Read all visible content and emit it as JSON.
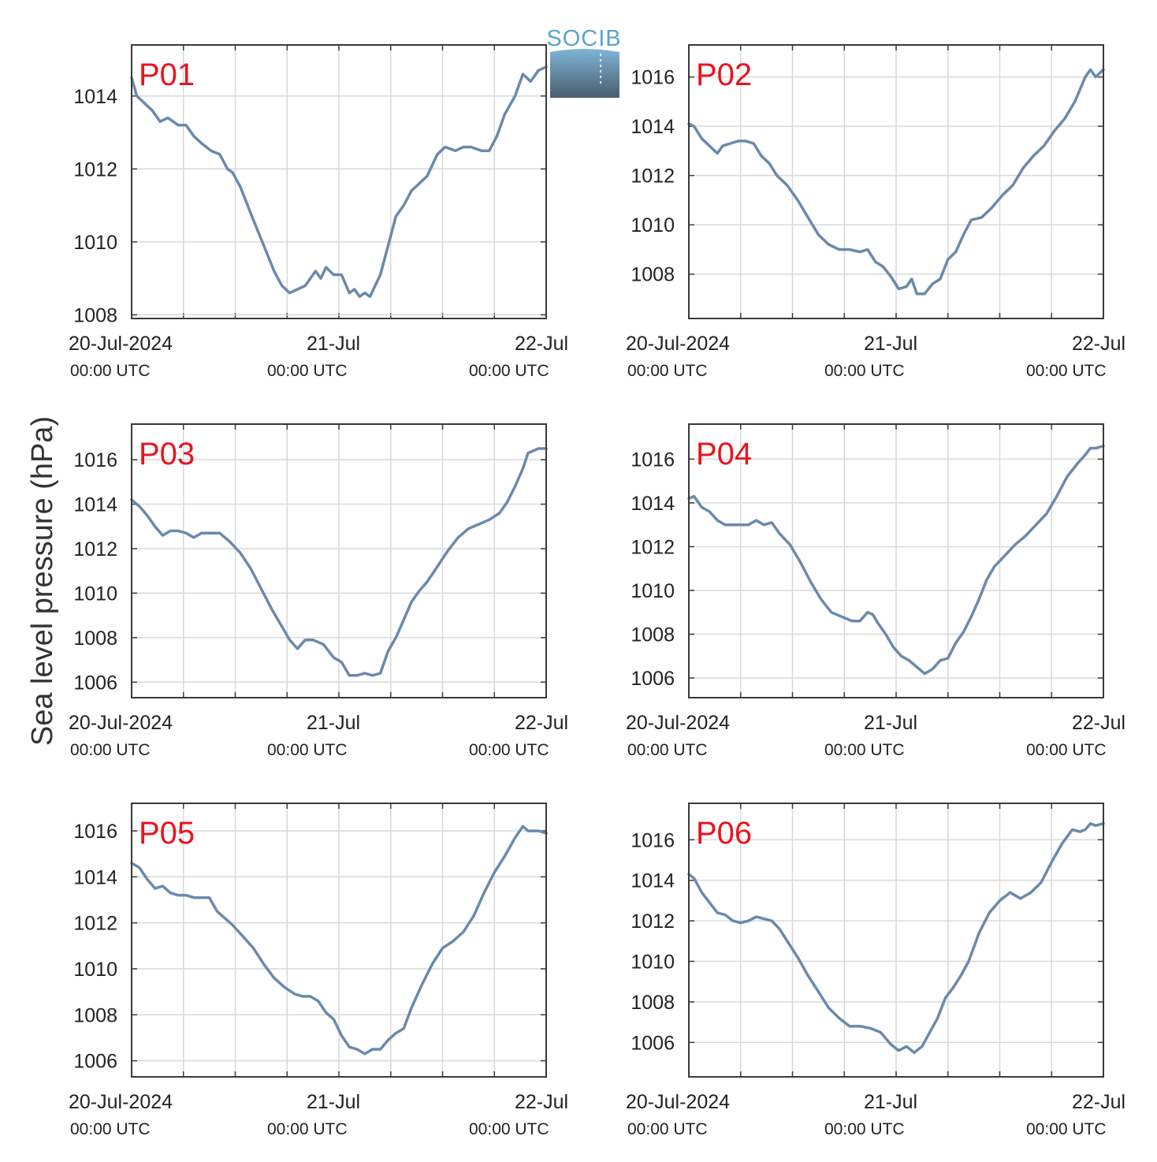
{
  "figure": {
    "ylabel": "Sea level pressure (hPa)",
    "logo_text": "SOCIB",
    "x_tick_labels": [
      "20-Jul-2024",
      "21-Jul",
      "22-Jul"
    ],
    "x_tick_sublabels": [
      "00:00 UTC",
      "00:00 UTC",
      "00:00 UTC"
    ]
  },
  "colors": {
    "line": "#6a8aac",
    "panel_label": "#e8141e",
    "grid": "#d9d9d9",
    "axis": "#3a3a3a",
    "logo_text": "#5ba3cd",
    "logo_top": "#7fb5d5",
    "logo_bottom": "#4a5c70"
  },
  "chart_data": [
    {
      "type": "line",
      "label": "P01",
      "x_unit": "hours since 20-Jul-2024 00:00 UTC",
      "xlim": [
        0,
        48
      ],
      "ylim": [
        1007.9,
        1015.4
      ],
      "yticks": [
        1008,
        1010,
        1012,
        1014
      ],
      "x": [
        0,
        0.6,
        1.5,
        2.4,
        3.3,
        4.2,
        5.4,
        6.3,
        7.2,
        8.1,
        9.2,
        10.2,
        11.1,
        11.7,
        12.6,
        14.1,
        15.3,
        16.5,
        17.4,
        18.3,
        19.2,
        20.1,
        21.3,
        21.9,
        22.5,
        23.4,
        24.3,
        25.2,
        25.8,
        26.4,
        27.0,
        27.6,
        28.2,
        28.8,
        29.7,
        30.6,
        31.5,
        32.4,
        33.3,
        34.2,
        35.4,
        36.3,
        37.5,
        38.4,
        39.3,
        40.5,
        41.4,
        42.3,
        43.2,
        44.4,
        45.3,
        46.2,
        47.1,
        48.0
      ],
      "y": [
        1014.5,
        1014.0,
        1013.8,
        1013.6,
        1013.3,
        1013.4,
        1013.2,
        1013.2,
        1012.9,
        1012.7,
        1012.5,
        1012.4,
        1012.0,
        1011.9,
        1011.5,
        1010.6,
        1009.9,
        1009.2,
        1008.8,
        1008.6,
        1008.7,
        1008.8,
        1009.2,
        1009.0,
        1009.3,
        1009.1,
        1009.1,
        1008.6,
        1008.7,
        1008.5,
        1008.6,
        1008.5,
        1008.8,
        1009.1,
        1009.9,
        1010.7,
        1011.0,
        1011.4,
        1011.6,
        1011.8,
        1012.4,
        1012.6,
        1012.5,
        1012.6,
        1012.6,
        1012.5,
        1012.5,
        1012.9,
        1013.5,
        1014.0,
        1014.6,
        1014.4,
        1014.7,
        1014.8
      ]
    },
    {
      "type": "line",
      "label": "P02",
      "x_unit": "hours since 20-Jul-2024 00:00 UTC",
      "xlim": [
        0,
        48
      ],
      "ylim": [
        1006.2,
        1017.3
      ],
      "yticks": [
        1008,
        1010,
        1012,
        1014,
        1016
      ],
      "x": [
        0,
        0.6,
        1.5,
        2.4,
        3.3,
        3.9,
        4.8,
        5.7,
        6.6,
        7.5,
        8.4,
        9.3,
        10.2,
        11.4,
        12.6,
        13.8,
        15.0,
        16.2,
        17.4,
        18.6,
        19.8,
        20.7,
        21.6,
        22.5,
        23.4,
        24.3,
        25.2,
        25.8,
        26.4,
        27.3,
        28.2,
        29.1,
        30.0,
        30.9,
        31.8,
        32.7,
        33.9,
        35.1,
        36.3,
        37.5,
        38.7,
        39.9,
        41.1,
        42.3,
        43.5,
        44.7,
        45.3,
        45.9,
        46.5,
        47.1,
        48.0
      ],
      "y": [
        1014.1,
        1014.0,
        1013.5,
        1013.2,
        1012.9,
        1013.2,
        1013.3,
        1013.4,
        1013.4,
        1013.3,
        1012.8,
        1012.5,
        1012.0,
        1011.6,
        1011.0,
        1010.3,
        1009.6,
        1009.2,
        1009.0,
        1009.0,
        1008.9,
        1009.0,
        1008.5,
        1008.3,
        1007.9,
        1007.4,
        1007.5,
        1007.8,
        1007.2,
        1007.2,
        1007.6,
        1007.8,
        1008.6,
        1008.9,
        1009.6,
        1010.2,
        1010.3,
        1010.7,
        1011.2,
        1011.6,
        1012.3,
        1012.8,
        1013.2,
        1013.8,
        1014.3,
        1015.0,
        1015.5,
        1016.0,
        1016.3,
        1016.0,
        1016.3
      ]
    },
    {
      "type": "line",
      "label": "P03",
      "x_unit": "hours since 20-Jul-2024 00:00 UTC",
      "xlim": [
        0,
        48
      ],
      "ylim": [
        1005.3,
        1017.6
      ],
      "yticks": [
        1006,
        1008,
        1010,
        1012,
        1014,
        1016
      ],
      "x": [
        0,
        0.9,
        1.8,
        2.7,
        3.6,
        4.5,
        5.4,
        6.3,
        7.2,
        8.1,
        9.0,
        10.2,
        11.4,
        12.6,
        13.8,
        15.0,
        16.2,
        17.4,
        18.3,
        19.2,
        20.1,
        21.0,
        22.2,
        23.4,
        24.3,
        25.2,
        26.1,
        27.0,
        27.9,
        28.8,
        29.7,
        30.6,
        31.5,
        32.4,
        33.3,
        34.2,
        35.4,
        36.6,
        37.8,
        39.0,
        40.2,
        41.4,
        42.6,
        43.5,
        44.4,
        45.3,
        45.9,
        46.5,
        47.1,
        48.0
      ],
      "y": [
        1014.2,
        1013.9,
        1013.5,
        1013.0,
        1012.6,
        1012.8,
        1012.8,
        1012.7,
        1012.5,
        1012.7,
        1012.7,
        1012.7,
        1012.3,
        1011.8,
        1011.1,
        1010.2,
        1009.3,
        1008.5,
        1007.9,
        1007.5,
        1007.9,
        1007.9,
        1007.7,
        1007.1,
        1006.9,
        1006.3,
        1006.3,
        1006.4,
        1006.3,
        1006.4,
        1007.4,
        1008.0,
        1008.8,
        1009.6,
        1010.1,
        1010.5,
        1011.2,
        1011.9,
        1012.5,
        1012.9,
        1013.1,
        1013.3,
        1013.6,
        1014.1,
        1014.8,
        1015.6,
        1016.3,
        1016.4,
        1016.5,
        1016.5
      ]
    },
    {
      "type": "line",
      "label": "P04",
      "x_unit": "hours since 20-Jul-2024 00:00 UTC",
      "xlim": [
        0,
        48
      ],
      "ylim": [
        1005.1,
        1017.6
      ],
      "yticks": [
        1006,
        1008,
        1010,
        1012,
        1014,
        1016
      ],
      "x": [
        0,
        0.6,
        1.5,
        2.4,
        3.3,
        4.2,
        5.1,
        6.0,
        6.9,
        7.8,
        8.7,
        9.6,
        10.5,
        11.7,
        12.9,
        14.1,
        15.3,
        16.5,
        17.7,
        18.9,
        19.8,
        20.7,
        21.3,
        21.9,
        22.8,
        23.7,
        24.6,
        25.5,
        26.4,
        27.3,
        28.2,
        29.1,
        30.0,
        30.9,
        31.8,
        32.7,
        33.6,
        34.5,
        35.4,
        36.6,
        37.8,
        39.0,
        40.2,
        41.4,
        42.6,
        43.8,
        45.0,
        45.9,
        46.5,
        47.1,
        48.0
      ],
      "y": [
        1014.2,
        1014.3,
        1013.8,
        1013.6,
        1013.2,
        1013.0,
        1013.0,
        1013.0,
        1013.0,
        1013.2,
        1013.0,
        1013.1,
        1012.6,
        1012.1,
        1011.3,
        1010.4,
        1009.6,
        1009.0,
        1008.8,
        1008.6,
        1008.6,
        1009.0,
        1008.9,
        1008.5,
        1008.0,
        1007.4,
        1007.0,
        1006.8,
        1006.5,
        1006.2,
        1006.4,
        1006.8,
        1006.9,
        1007.6,
        1008.1,
        1008.8,
        1009.6,
        1010.5,
        1011.1,
        1011.6,
        1012.1,
        1012.5,
        1013.0,
        1013.5,
        1014.3,
        1015.2,
        1015.8,
        1016.2,
        1016.5,
        1016.5,
        1016.6
      ]
    },
    {
      "type": "line",
      "label": "P05",
      "x_unit": "hours since 20-Jul-2024 00:00 UTC",
      "xlim": [
        0,
        48
      ],
      "ylim": [
        1005.3,
        1017.2
      ],
      "yticks": [
        1006,
        1008,
        1010,
        1012,
        1014,
        1016
      ],
      "x": [
        0,
        0.9,
        1.8,
        2.7,
        3.6,
        4.5,
        5.4,
        6.3,
        7.2,
        8.1,
        9.0,
        9.9,
        10.8,
        11.7,
        12.9,
        14.1,
        15.3,
        16.5,
        17.7,
        18.9,
        19.8,
        20.7,
        21.6,
        22.5,
        23.4,
        24.3,
        25.2,
        26.1,
        27.0,
        27.9,
        28.8,
        29.7,
        30.6,
        31.5,
        32.4,
        33.6,
        34.8,
        36.0,
        37.2,
        38.4,
        39.6,
        40.8,
        42.0,
        43.2,
        44.4,
        45.3,
        45.9,
        46.5,
        47.1,
        48.0
      ],
      "y": [
        1014.6,
        1014.4,
        1013.9,
        1013.5,
        1013.6,
        1013.3,
        1013.2,
        1013.2,
        1013.1,
        1013.1,
        1013.1,
        1012.5,
        1012.2,
        1011.9,
        1011.4,
        1010.9,
        1010.2,
        1009.6,
        1009.2,
        1008.9,
        1008.8,
        1008.8,
        1008.6,
        1008.1,
        1007.8,
        1007.1,
        1006.6,
        1006.5,
        1006.3,
        1006.5,
        1006.5,
        1006.9,
        1007.2,
        1007.4,
        1008.3,
        1009.3,
        1010.2,
        1010.9,
        1011.2,
        1011.6,
        1012.3,
        1013.3,
        1014.2,
        1014.9,
        1015.7,
        1016.2,
        1016.0,
        1016.0,
        1016.0,
        1015.9
      ]
    },
    {
      "type": "line",
      "label": "P06",
      "x_unit": "hours since 20-Jul-2024 00:00 UTC",
      "xlim": [
        0,
        48
      ],
      "ylim": [
        1004.3,
        1017.8
      ],
      "yticks": [
        1006,
        1008,
        1010,
        1012,
        1014,
        1016
      ],
      "x": [
        0,
        0.6,
        1.5,
        2.4,
        3.3,
        4.2,
        5.1,
        6.0,
        6.9,
        7.8,
        8.7,
        9.6,
        10.5,
        11.4,
        12.6,
        13.8,
        15.0,
        16.2,
        17.4,
        18.6,
        19.8,
        21.0,
        22.2,
        23.4,
        24.3,
        25.2,
        26.1,
        27.0,
        27.9,
        28.8,
        29.7,
        30.6,
        31.5,
        32.4,
        33.6,
        34.8,
        36.0,
        37.2,
        38.4,
        39.6,
        40.8,
        42.0,
        43.2,
        44.4,
        45.3,
        45.9,
        46.5,
        47.1,
        48.0
      ],
      "y": [
        1014.3,
        1014.1,
        1013.4,
        1012.9,
        1012.4,
        1012.3,
        1012.0,
        1011.9,
        1012.0,
        1012.2,
        1012.1,
        1012.0,
        1011.6,
        1011.0,
        1010.2,
        1009.3,
        1008.5,
        1007.7,
        1007.2,
        1006.8,
        1006.8,
        1006.7,
        1006.5,
        1005.9,
        1005.6,
        1005.8,
        1005.5,
        1005.8,
        1006.5,
        1007.2,
        1008.2,
        1008.7,
        1009.3,
        1010.0,
        1011.4,
        1012.4,
        1013.0,
        1013.4,
        1013.1,
        1013.4,
        1013.9,
        1014.9,
        1015.8,
        1016.5,
        1016.4,
        1016.5,
        1016.8,
        1016.7,
        1016.8
      ]
    }
  ]
}
